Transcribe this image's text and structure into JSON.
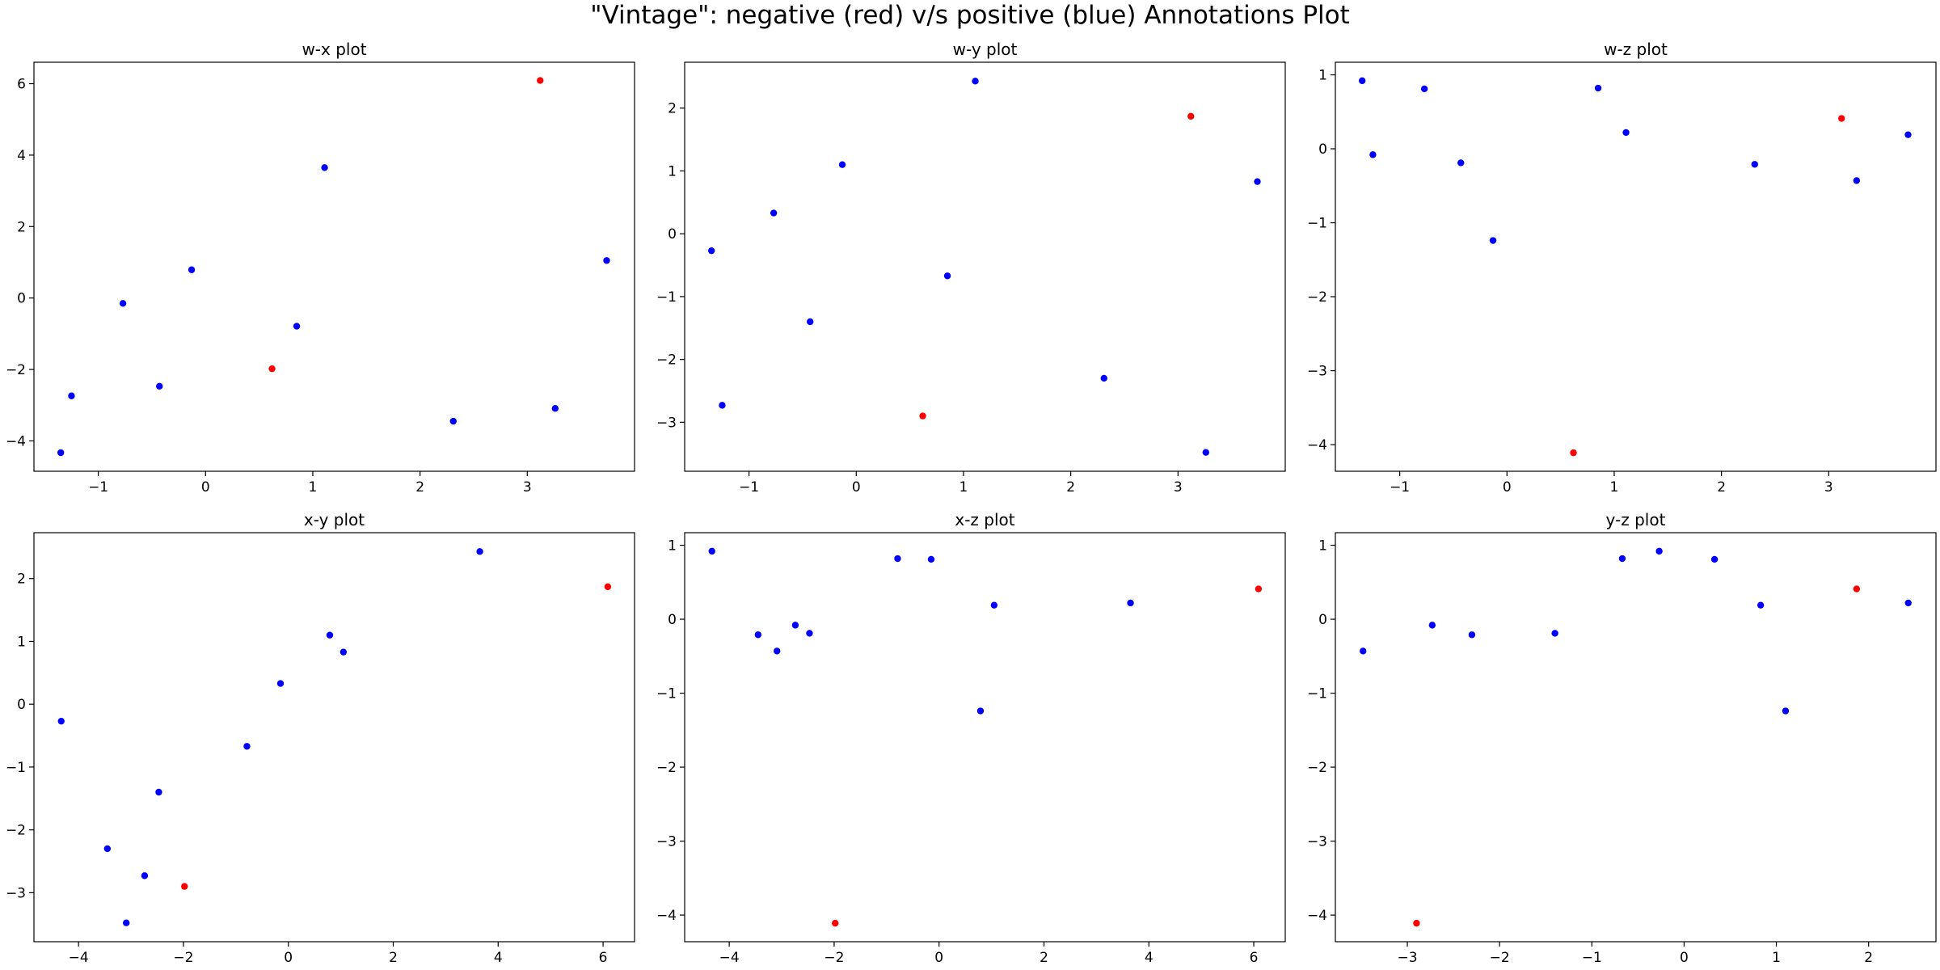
{
  "chart_data": {
    "type": "scatter",
    "suptitle": "\"Vintage\": negative (red) v/s positive (blue) Annotations Plot",
    "colors": {
      "negative": "#ff0000",
      "positive": "#0000ff"
    },
    "grid": false,
    "variables": {
      "w": [
        -1.35,
        -1.25,
        -0.77,
        -0.43,
        -0.13,
        0.62,
        0.85,
        1.11,
        2.31,
        3.12,
        3.26,
        3.74
      ],
      "x": [
        -4.33,
        -2.74,
        -0.15,
        -2.47,
        0.79,
        -1.98,
        -0.79,
        3.65,
        -3.45,
        6.09,
        -3.09,
        1.05
      ],
      "y": [
        -0.27,
        -2.73,
        0.33,
        -1.4,
        1.1,
        -2.9,
        -0.67,
        2.43,
        -2.3,
        1.87,
        -3.48,
        0.83
      ],
      "z": [
        0.92,
        -0.08,
        0.81,
        -0.19,
        -1.24,
        -4.11,
        0.82,
        0.22,
        -0.21,
        0.41,
        -0.43,
        0.19
      ],
      "label": [
        "positive",
        "positive",
        "positive",
        "positive",
        "positive",
        "negative",
        "positive",
        "positive",
        "positive",
        "negative",
        "positive",
        "positive"
      ]
    },
    "subplots": [
      {
        "title": "w-x plot",
        "x_var": "w",
        "y_var": "x",
        "xlim": [
          -1.6,
          4.0
        ],
        "ylim": [
          -4.85,
          6.6
        ],
        "xticks": [
          "−1",
          "0",
          "1",
          "2",
          "3"
        ],
        "xtick_values": [
          -1,
          0,
          1,
          2,
          3
        ],
        "yticks": [
          "−4",
          "−2",
          "0",
          "2",
          "4",
          "6"
        ],
        "ytick_values": [
          -4,
          -2,
          0,
          2,
          4,
          6
        ]
      },
      {
        "title": "w-y plot",
        "x_var": "w",
        "y_var": "y",
        "xlim": [
          -1.6,
          4.0
        ],
        "ylim": [
          -3.78,
          2.73
        ],
        "xticks": [
          "−1",
          "0",
          "1",
          "2",
          "3"
        ],
        "xtick_values": [
          -1,
          0,
          1,
          2,
          3
        ],
        "yticks": [
          "−3",
          "−2",
          "−1",
          "0",
          "1",
          "2"
        ],
        "ytick_values": [
          -3,
          -2,
          -1,
          0,
          1,
          2
        ]
      },
      {
        "title": "w-z plot",
        "x_var": "w",
        "y_var": "z",
        "xlim": [
          -1.6,
          4.0
        ],
        "ylim": [
          -4.36,
          1.17
        ],
        "xticks": [
          "−1",
          "0",
          "1",
          "2",
          "3"
        ],
        "xtick_values": [
          -1,
          0,
          1,
          2,
          3
        ],
        "yticks": [
          "−4",
          "−3",
          "−2",
          "−1",
          "0",
          "1"
        ],
        "ytick_values": [
          -4,
          -3,
          -2,
          -1,
          0,
          1
        ]
      },
      {
        "title": "x-y plot",
        "x_var": "x",
        "y_var": "y",
        "xlim": [
          -4.85,
          6.6
        ],
        "ylim": [
          -3.78,
          2.73
        ],
        "xticks": [
          "−4",
          "−2",
          "0",
          "2",
          "4",
          "6"
        ],
        "xtick_values": [
          -4,
          -2,
          0,
          2,
          4,
          6
        ],
        "yticks": [
          "−3",
          "−2",
          "−1",
          "0",
          "1",
          "2"
        ],
        "ytick_values": [
          -3,
          -2,
          -1,
          0,
          1,
          2
        ]
      },
      {
        "title": "x-z plot",
        "x_var": "x",
        "y_var": "z",
        "xlim": [
          -4.85,
          6.6
        ],
        "ylim": [
          -4.36,
          1.17
        ],
        "xticks": [
          "−4",
          "−2",
          "0",
          "2",
          "4",
          "6"
        ],
        "xtick_values": [
          -4,
          -2,
          0,
          2,
          4,
          6
        ],
        "yticks": [
          "−4",
          "−3",
          "−2",
          "−1",
          "0",
          "1"
        ],
        "ytick_values": [
          -4,
          -3,
          -2,
          -1,
          0,
          1
        ]
      },
      {
        "title": "y-z plot",
        "x_var": "y",
        "y_var": "z",
        "xlim": [
          -3.78,
          2.73
        ],
        "ylim": [
          -4.36,
          1.17
        ],
        "xticks": [
          "−3",
          "−2",
          "−1",
          "0",
          "1",
          "2"
        ],
        "xtick_values": [
          -3,
          -2,
          -1,
          0,
          1,
          2
        ],
        "yticks": [
          "−4",
          "−3",
          "−2",
          "−1",
          "0",
          "1"
        ],
        "ytick_values": [
          -4,
          -3,
          -2,
          -1,
          0,
          1
        ]
      }
    ]
  }
}
